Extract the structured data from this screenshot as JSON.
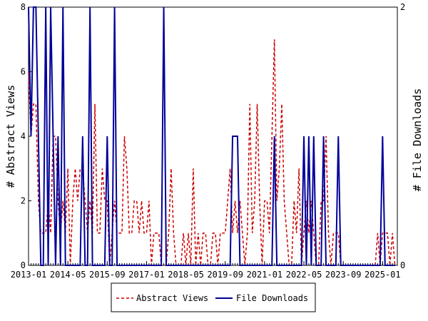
{
  "chart_data": {
    "type": "line",
    "y_left": {
      "label": "# Abstract Views",
      "ylim": [
        0,
        8
      ],
      "ticks": [
        "0",
        "2",
        "4",
        "6",
        "8"
      ]
    },
    "y_right": {
      "label": "# File Downloads",
      "ylim": [
        0,
        2
      ],
      "ticks": [
        "0",
        "2"
      ]
    },
    "x_axis": {
      "start": "2013-01",
      "end": "2025-07",
      "tick_labels": [
        "2013-01",
        "2014-05",
        "2015-09",
        "2017-01",
        "2018-05",
        "2019-09",
        "2021-01",
        "2022-05",
        "2023-09",
        "2025-01"
      ]
    },
    "grid": false,
    "legend_position": "bottom-center",
    "series": [
      {
        "name": "Abstract Views",
        "axis": "left",
        "color": "#cc0000",
        "style": "dashed",
        "points": [
          [
            "2013-01",
            6
          ],
          [
            "2013-02",
            4
          ],
          [
            "2013-03",
            5
          ],
          [
            "2013-04",
            5
          ],
          [
            "2013-05",
            2
          ],
          [
            "2013-06",
            1
          ],
          [
            "2013-07",
            1
          ],
          [
            "2013-08",
            1
          ],
          [
            "2013-09",
            2
          ],
          [
            "2013-10",
            1
          ],
          [
            "2013-11",
            4
          ],
          [
            "2013-12",
            4
          ],
          [
            "2014-01",
            2
          ],
          [
            "2014-02",
            1
          ],
          [
            "2014-03",
            2
          ],
          [
            "2014-04",
            1
          ],
          [
            "2014-05",
            3
          ],
          [
            "2014-06",
            0
          ],
          [
            "2014-07",
            2
          ],
          [
            "2014-08",
            3
          ],
          [
            "2014-09",
            2
          ],
          [
            "2014-10",
            3
          ],
          [
            "2014-11",
            3
          ],
          [
            "2014-12",
            2
          ],
          [
            "2015-01",
            1
          ],
          [
            "2015-02",
            2
          ],
          [
            "2015-03",
            1
          ],
          [
            "2015-04",
            5
          ],
          [
            "2015-05",
            1
          ],
          [
            "2015-06",
            1
          ],
          [
            "2015-07",
            3
          ],
          [
            "2015-08",
            2
          ],
          [
            "2015-09",
            2
          ],
          [
            "2015-10",
            0
          ],
          [
            "2015-11",
            1
          ],
          [
            "2015-12",
            2
          ],
          [
            "2016-01",
            1
          ],
          [
            "2016-02",
            1
          ],
          [
            "2016-03",
            1
          ],
          [
            "2016-04",
            4
          ],
          [
            "2016-05",
            3
          ],
          [
            "2016-06",
            1
          ],
          [
            "2016-07",
            1
          ],
          [
            "2016-08",
            2
          ],
          [
            "2016-09",
            2
          ],
          [
            "2016-10",
            1
          ],
          [
            "2016-11",
            2
          ],
          [
            "2016-12",
            1
          ],
          [
            "2017-01",
            1
          ],
          [
            "2017-02",
            2
          ],
          [
            "2017-03",
            0
          ],
          [
            "2017-04",
            1
          ],
          [
            "2017-05",
            1
          ],
          [
            "2017-06",
            1
          ],
          [
            "2017-07",
            0
          ],
          [
            "2017-08",
            0
          ],
          [
            "2017-09",
            0
          ],
          [
            "2017-10",
            1
          ],
          [
            "2017-11",
            3
          ],
          [
            "2017-12",
            1
          ],
          [
            "2018-01",
            0
          ],
          [
            "2018-02",
            0
          ],
          [
            "2018-03",
            0
          ],
          [
            "2018-04",
            1
          ],
          [
            "2018-05",
            0
          ],
          [
            "2018-06",
            1
          ],
          [
            "2018-07",
            0
          ],
          [
            "2018-08",
            3
          ],
          [
            "2018-09",
            0
          ],
          [
            "2018-10",
            1
          ],
          [
            "2018-11",
            0
          ],
          [
            "2018-12",
            1
          ],
          [
            "2019-01",
            1
          ],
          [
            "2019-02",
            0
          ],
          [
            "2019-03",
            0
          ],
          [
            "2019-04",
            1
          ],
          [
            "2019-05",
            1
          ],
          [
            "2019-06",
            0
          ],
          [
            "2019-07",
            1
          ],
          [
            "2019-08",
            1
          ],
          [
            "2019-09",
            1
          ],
          [
            "2019-10",
            2
          ],
          [
            "2019-11",
            3
          ],
          [
            "2019-12",
            1
          ],
          [
            "2020-01",
            2
          ],
          [
            "2020-02",
            1
          ],
          [
            "2020-03",
            2
          ],
          [
            "2020-04",
            1
          ],
          [
            "2020-05",
            0
          ],
          [
            "2020-06",
            1
          ],
          [
            "2020-07",
            5
          ],
          [
            "2020-08",
            1
          ],
          [
            "2020-09",
            2
          ],
          [
            "2020-10",
            5
          ],
          [
            "2020-11",
            2
          ],
          [
            "2020-12",
            0
          ],
          [
            "2021-01",
            2
          ],
          [
            "2021-02",
            2
          ],
          [
            "2021-03",
            1
          ],
          [
            "2021-04",
            4
          ],
          [
            "2021-05",
            7
          ],
          [
            "2021-06",
            2
          ],
          [
            "2021-07",
            3
          ],
          [
            "2021-08",
            5
          ],
          [
            "2021-09",
            2
          ],
          [
            "2021-10",
            1
          ],
          [
            "2021-11",
            0
          ],
          [
            "2021-12",
            0
          ],
          [
            "2022-01",
            2
          ],
          [
            "2022-02",
            1
          ],
          [
            "2022-03",
            3
          ],
          [
            "2022-04",
            0
          ],
          [
            "2022-05",
            1
          ],
          [
            "2022-06",
            2
          ],
          [
            "2022-07",
            1
          ],
          [
            "2022-08",
            2
          ],
          [
            "2022-09",
            1
          ],
          [
            "2022-10",
            0
          ],
          [
            "2022-11",
            0
          ],
          [
            "2022-12",
            2
          ],
          [
            "2023-01",
            2
          ],
          [
            "2023-02",
            4
          ],
          [
            "2023-03",
            1
          ],
          [
            "2023-04",
            0
          ],
          [
            "2023-05",
            1
          ],
          [
            "2023-06",
            1
          ],
          [
            "2023-07",
            1
          ],
          [
            "2023-08",
            0
          ],
          [
            "2023-09",
            0
          ],
          [
            "2023-10",
            0
          ],
          [
            "2023-11",
            0
          ],
          [
            "2023-12",
            0
          ],
          [
            "2024-01",
            0
          ],
          [
            "2024-02",
            0
          ],
          [
            "2024-03",
            0
          ],
          [
            "2024-04",
            0
          ],
          [
            "2024-05",
            0
          ],
          [
            "2024-06",
            0
          ],
          [
            "2024-07",
            0
          ],
          [
            "2024-08",
            0
          ],
          [
            "2024-09",
            0
          ],
          [
            "2024-10",
            0
          ],
          [
            "2024-11",
            1
          ],
          [
            "2024-12",
            0
          ],
          [
            "2025-01",
            1
          ],
          [
            "2025-02",
            1
          ],
          [
            "2025-03",
            1
          ],
          [
            "2025-04",
            0
          ],
          [
            "2025-05",
            1
          ],
          [
            "2025-06",
            0
          ]
        ]
      },
      {
        "name": "File Downloads",
        "axis": "right",
        "color": "#000099",
        "style": "solid",
        "points": [
          [
            "2013-01",
            2
          ],
          [
            "2013-02",
            1
          ],
          [
            "2013-03",
            2
          ],
          [
            "2013-04",
            2
          ],
          [
            "2013-05",
            1
          ],
          [
            "2013-06",
            0
          ],
          [
            "2013-07",
            0
          ],
          [
            "2013-08",
            2
          ],
          [
            "2013-09",
            0
          ],
          [
            "2013-10",
            2
          ],
          [
            "2013-11",
            1
          ],
          [
            "2013-12",
            0
          ],
          [
            "2014-01",
            1
          ],
          [
            "2014-02",
            0
          ],
          [
            "2014-03",
            2
          ],
          [
            "2014-04",
            0
          ],
          [
            "2014-05",
            0
          ],
          [
            "2014-06",
            0
          ],
          [
            "2014-07",
            0
          ],
          [
            "2014-08",
            0
          ],
          [
            "2014-09",
            0
          ],
          [
            "2014-10",
            0
          ],
          [
            "2014-11",
            1
          ],
          [
            "2014-12",
            0
          ],
          [
            "2015-01",
            0
          ],
          [
            "2015-02",
            2
          ],
          [
            "2015-03",
            0
          ],
          [
            "2015-04",
            0
          ],
          [
            "2015-05",
            0
          ],
          [
            "2015-06",
            0
          ],
          [
            "2015-07",
            0
          ],
          [
            "2015-08",
            0
          ],
          [
            "2015-09",
            1
          ],
          [
            "2015-10",
            0
          ],
          [
            "2015-11",
            0
          ],
          [
            "2015-12",
            2
          ],
          [
            "2016-01",
            0
          ],
          [
            "2016-02",
            0
          ],
          [
            "2016-03",
            0
          ],
          [
            "2016-04",
            0
          ],
          [
            "2016-05",
            0
          ],
          [
            "2016-06",
            0
          ],
          [
            "2016-07",
            0
          ],
          [
            "2016-08",
            0
          ],
          [
            "2016-09",
            0
          ],
          [
            "2016-10",
            0
          ],
          [
            "2016-11",
            0
          ],
          [
            "2016-12",
            0
          ],
          [
            "2017-01",
            0
          ],
          [
            "2017-02",
            0
          ],
          [
            "2017-03",
            0
          ],
          [
            "2017-04",
            0
          ],
          [
            "2017-05",
            0
          ],
          [
            "2017-06",
            0
          ],
          [
            "2017-07",
            0
          ],
          [
            "2017-08",
            2
          ],
          [
            "2017-09",
            0
          ],
          [
            "2017-10",
            0
          ],
          [
            "2017-11",
            0
          ],
          [
            "2017-12",
            0
          ],
          [
            "2018-01",
            0
          ],
          [
            "2018-02",
            0
          ],
          [
            "2018-03",
            0
          ],
          [
            "2018-04",
            0
          ],
          [
            "2018-05",
            0
          ],
          [
            "2018-06",
            0
          ],
          [
            "2018-07",
            0
          ],
          [
            "2018-08",
            0
          ],
          [
            "2018-09",
            0
          ],
          [
            "2018-10",
            0
          ],
          [
            "2018-11",
            0
          ],
          [
            "2018-12",
            0
          ],
          [
            "2019-01",
            0
          ],
          [
            "2019-02",
            0
          ],
          [
            "2019-03",
            0
          ],
          [
            "2019-04",
            0
          ],
          [
            "2019-05",
            0
          ],
          [
            "2019-06",
            0
          ],
          [
            "2019-07",
            0
          ],
          [
            "2019-08",
            0
          ],
          [
            "2019-09",
            0
          ],
          [
            "2019-10",
            0
          ],
          [
            "2019-11",
            0
          ],
          [
            "2019-12",
            1
          ],
          [
            "2020-01",
            1
          ],
          [
            "2020-02",
            1
          ],
          [
            "2020-03",
            0
          ],
          [
            "2020-04",
            0
          ],
          [
            "2020-05",
            0
          ],
          [
            "2020-06",
            0
          ],
          [
            "2020-07",
            0
          ],
          [
            "2020-08",
            0
          ],
          [
            "2020-09",
            0
          ],
          [
            "2020-10",
            0
          ],
          [
            "2020-11",
            0
          ],
          [
            "2020-12",
            0
          ],
          [
            "2021-01",
            0
          ],
          [
            "2021-02",
            0
          ],
          [
            "2021-03",
            0
          ],
          [
            "2021-04",
            0
          ],
          [
            "2021-05",
            1
          ],
          [
            "2021-06",
            0
          ],
          [
            "2021-07",
            0
          ],
          [
            "2021-08",
            0
          ],
          [
            "2021-09",
            0
          ],
          [
            "2021-10",
            0
          ],
          [
            "2021-11",
            0
          ],
          [
            "2021-12",
            0
          ],
          [
            "2022-01",
            0
          ],
          [
            "2022-02",
            0
          ],
          [
            "2022-03",
            0
          ],
          [
            "2022-04",
            0
          ],
          [
            "2022-05",
            1
          ],
          [
            "2022-06",
            0
          ],
          [
            "2022-07",
            1
          ],
          [
            "2022-08",
            0
          ],
          [
            "2022-09",
            1
          ],
          [
            "2022-10",
            0
          ],
          [
            "2022-11",
            0
          ],
          [
            "2022-12",
            0
          ],
          [
            "2023-01",
            1
          ],
          [
            "2023-02",
            0
          ],
          [
            "2023-03",
            0
          ],
          [
            "2023-04",
            0
          ],
          [
            "2023-05",
            0
          ],
          [
            "2023-06",
            0
          ],
          [
            "2023-07",
            1
          ],
          [
            "2023-08",
            0
          ],
          [
            "2023-09",
            0
          ],
          [
            "2023-10",
            0
          ],
          [
            "2023-11",
            0
          ],
          [
            "2023-12",
            0
          ],
          [
            "2024-01",
            0
          ],
          [
            "2024-02",
            0
          ],
          [
            "2024-03",
            0
          ],
          [
            "2024-04",
            0
          ],
          [
            "2024-05",
            0
          ],
          [
            "2024-06",
            0
          ],
          [
            "2024-07",
            0
          ],
          [
            "2024-08",
            0
          ],
          [
            "2024-09",
            0
          ],
          [
            "2024-10",
            0
          ],
          [
            "2024-11",
            0
          ],
          [
            "2024-12",
            0
          ],
          [
            "2025-01",
            1
          ],
          [
            "2025-02",
            0
          ],
          [
            "2025-03",
            0
          ],
          [
            "2025-04",
            0
          ],
          [
            "2025-05",
            0
          ],
          [
            "2025-06",
            0
          ]
        ]
      }
    ]
  }
}
